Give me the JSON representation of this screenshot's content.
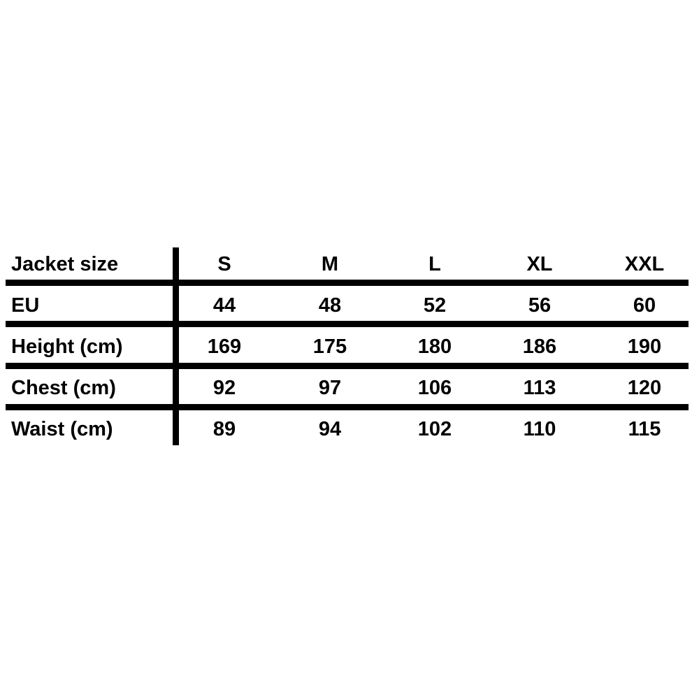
{
  "table": {
    "header": {
      "label": "Jacket size",
      "sizes": [
        "S",
        "M",
        "L",
        "XL",
        "XXL"
      ]
    },
    "rows": [
      {
        "label": "EU",
        "values": [
          "44",
          "48",
          "52",
          "56",
          "60"
        ]
      },
      {
        "label": "Height (cm)",
        "values": [
          "169",
          "175",
          "180",
          "186",
          "190"
        ]
      },
      {
        "label": "Chest (cm)",
        "values": [
          "92",
          "97",
          "106",
          "113",
          "120"
        ]
      },
      {
        "label": "Waist (cm)",
        "values": [
          "89",
          "94",
          "102",
          "110",
          "115"
        ]
      }
    ]
  }
}
